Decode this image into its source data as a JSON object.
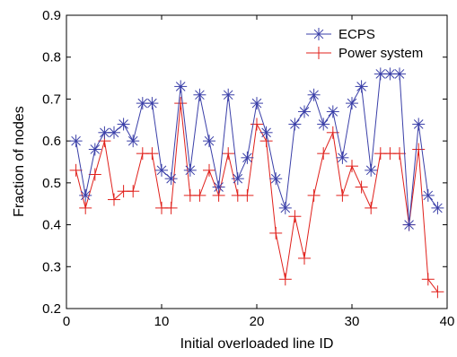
{
  "chart_data": {
    "type": "line",
    "xlabel": "Initial overloaded line ID",
    "ylabel": "Fraction of nodes",
    "xlim": [
      0,
      40
    ],
    "ylim": [
      0.2,
      0.9
    ],
    "xticks": [
      "0",
      "10",
      "20",
      "30",
      "40"
    ],
    "yticks": [
      "0.2",
      "0.3",
      "0.4",
      "0.5",
      "0.6",
      "0.7",
      "0.8",
      "0.9"
    ],
    "grid": false,
    "legend_position": "top-right",
    "x": [
      1,
      2,
      3,
      4,
      5,
      6,
      7,
      8,
      9,
      10,
      11,
      12,
      13,
      14,
      15,
      16,
      17,
      18,
      19,
      20,
      21,
      22,
      23,
      24,
      25,
      26,
      27,
      28,
      29,
      30,
      31,
      32,
      33,
      34,
      35,
      36,
      37,
      38,
      39
    ],
    "series": [
      {
        "name": "ECPS",
        "color": "#3a3fa8",
        "marker": "asterisk",
        "values": [
          0.6,
          0.47,
          0.58,
          0.62,
          0.62,
          0.64,
          0.6,
          0.69,
          0.69,
          0.53,
          0.51,
          0.73,
          0.53,
          0.71,
          0.6,
          0.49,
          0.71,
          0.51,
          0.56,
          0.69,
          0.62,
          0.51,
          0.44,
          0.64,
          0.67,
          0.71,
          0.64,
          0.67,
          0.56,
          0.69,
          0.73,
          0.53,
          0.76,
          0.76,
          0.76,
          0.4,
          0.64,
          0.47,
          0.44
        ]
      },
      {
        "name": "Power system",
        "color": "#e0201b",
        "marker": "plus",
        "values": [
          0.53,
          0.44,
          0.52,
          0.6,
          0.46,
          0.48,
          0.48,
          0.57,
          0.57,
          0.44,
          0.44,
          0.69,
          0.47,
          0.47,
          0.53,
          0.47,
          0.57,
          0.47,
          0.47,
          0.64,
          0.6,
          0.38,
          0.27,
          0.42,
          0.32,
          0.47,
          0.57,
          0.62,
          0.47,
          0.54,
          0.49,
          0.44,
          0.57,
          0.57,
          0.57,
          0.4,
          0.58,
          0.27,
          0.24
        ]
      }
    ]
  }
}
